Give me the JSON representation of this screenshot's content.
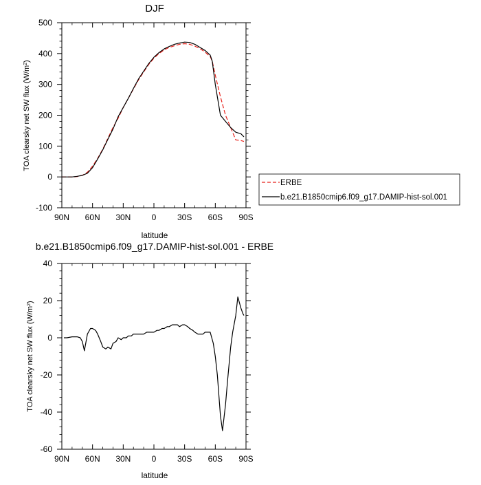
{
  "chart_data": [
    {
      "type": "line",
      "title": "DJF",
      "xlabel": "latitude",
      "ylabel": "TOA clearsky net SW flux (W/m",
      "ylabel_sup": "2",
      "ylabel_close": ")",
      "xlim": [
        -90,
        90
      ],
      "ylim": [
        -100,
        500
      ],
      "xticks": [
        -90,
        -60,
        -30,
        0,
        30,
        60,
        90
      ],
      "xtick_labels": [
        "90N",
        "60N",
        "30N",
        "0",
        "30S",
        "60S",
        "90S"
      ],
      "yticks": [
        -100,
        0,
        100,
        200,
        300,
        400,
        500
      ],
      "ytick_labels": [
        "-100",
        "0",
        "100",
        "200",
        "300",
        "400",
        "500"
      ],
      "legend": {
        "placement": "right",
        "entries": [
          "ERBE",
          "b.e21.B1850cmip6.f09_g17.DAMIP-hist-sol.001"
        ]
      },
      "series": [
        {
          "name": "ERBE",
          "color": "#e8221b",
          "dash": "dashed",
          "x": [
            -90,
            -85,
            -80,
            -75,
            -70,
            -65,
            -60,
            -55,
            -50,
            -45,
            -40,
            -35,
            -30,
            -25,
            -20,
            -15,
            -10,
            -5,
            0,
            5,
            10,
            15,
            20,
            25,
            30,
            35,
            40,
            45,
            50,
            55,
            57,
            60,
            65,
            70,
            75,
            80,
            85,
            88
          ],
          "y": [
            0,
            0,
            0,
            1,
            5,
            15,
            35,
            60,
            90,
            125,
            160,
            190,
            225,
            255,
            285,
            315,
            340,
            365,
            385,
            400,
            412,
            420,
            425,
            430,
            432,
            430,
            424,
            416,
            405,
            390,
            375,
            330,
            260,
            200,
            160,
            120,
            118,
            115
          ]
        },
        {
          "name": "b.e21.B1850cmip6.f09_g17.DAMIP-hist-sol.001",
          "color": "#000000",
          "dash": "solid",
          "x": [
            -90,
            -85,
            -80,
            -75,
            -70,
            -65,
            -60,
            -55,
            -50,
            -45,
            -40,
            -35,
            -30,
            -25,
            -20,
            -15,
            -10,
            -5,
            0,
            5,
            10,
            15,
            20,
            25,
            30,
            35,
            40,
            45,
            50,
            55,
            57,
            60,
            65,
            70,
            75,
            80,
            85,
            88
          ],
          "y": [
            0,
            0,
            0,
            2,
            5,
            12,
            30,
            58,
            88,
            122,
            155,
            195,
            225,
            255,
            287,
            318,
            343,
            368,
            388,
            403,
            415,
            423,
            430,
            434,
            437,
            436,
            430,
            420,
            410,
            395,
            375,
            300,
            200,
            180,
            160,
            145,
            140,
            130
          ]
        }
      ]
    },
    {
      "type": "line",
      "title": "b.e21.B1850cmip6.f09_g17.DAMIP-hist-sol.001 - ERBE",
      "xlabel": "latitude",
      "ylabel": "TOA clearsky net SW flux (W/m",
      "ylabel_sup": "2",
      "ylabel_close": ")",
      "xlim": [
        -90,
        90
      ],
      "ylim": [
        -60,
        40
      ],
      "xticks": [
        -90,
        -60,
        -30,
        0,
        30,
        60,
        90
      ],
      "xtick_labels": [
        "90N",
        "60N",
        "30N",
        "0",
        "30S",
        "60S",
        "90S"
      ],
      "yticks": [
        -60,
        -40,
        -20,
        0,
        20,
        40
      ],
      "ytick_labels": [
        "-60",
        "-40",
        "-20",
        "0",
        "20",
        "40"
      ],
      "series": [
        {
          "color": "#000000",
          "dash": "solid",
          "x": [
            -88,
            -85,
            -80,
            -77,
            -75,
            -72,
            -70,
            -68,
            -65,
            -62,
            -60,
            -57,
            -55,
            -52,
            -50,
            -47,
            -45,
            -42,
            -40,
            -37,
            -35,
            -32,
            -30,
            -27,
            -25,
            -22,
            -20,
            -17,
            -15,
            -12,
            -10,
            -7,
            -5,
            -2,
            0,
            3,
            5,
            8,
            10,
            13,
            15,
            18,
            20,
            23,
            25,
            28,
            30,
            33,
            35,
            38,
            40,
            43,
            45,
            48,
            50,
            53,
            55,
            58,
            60,
            62,
            65,
            67,
            70,
            72,
            75,
            77,
            80,
            82,
            85,
            87,
            88
          ],
          "y": [
            0,
            0,
            0.5,
            0.5,
            0.5,
            0,
            -2,
            -7,
            2,
            5,
            5,
            4,
            2,
            -2,
            -5,
            -6,
            -5,
            -6,
            -3,
            -2,
            0,
            -1,
            0,
            0,
            1,
            1,
            2,
            2,
            2,
            2,
            2,
            3,
            3,
            3,
            3,
            4,
            4,
            5,
            5,
            6,
            6,
            7,
            7,
            7,
            6,
            7,
            7,
            6,
            5,
            4,
            3,
            2,
            2,
            2,
            3,
            3,
            3,
            -3,
            -10,
            -20,
            -42,
            -50,
            -36,
            -23,
            -5,
            3,
            12,
            22,
            16,
            13,
            12
          ]
        }
      ]
    }
  ]
}
